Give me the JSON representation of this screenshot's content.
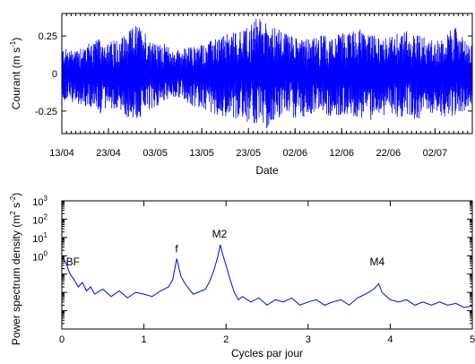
{
  "chart_data": [
    {
      "type": "line",
      "title": "",
      "xlabel": "Date",
      "ylabel": {
        "text": "Courant (m s",
        "exp": "-1",
        "close": ")"
      },
      "xlim": [
        "2011-04-13",
        "2011-07-10"
      ],
      "ylim": [
        -0.4,
        0.4
      ],
      "x_ticks": [
        "13/04",
        "23/04",
        "03/05",
        "13/05",
        "23/05",
        "02/06",
        "12/06",
        "22/06",
        "02/07"
      ],
      "x_tick_dates": [
        "2011-04-13",
        "2011-04-23",
        "2011-05-03",
        "2011-05-13",
        "2011-05-23",
        "2011-06-02",
        "2011-06-12",
        "2011-06-22",
        "2011-07-02"
      ],
      "y_ticks": [
        -0.25,
        0,
        0.25
      ],
      "y_tick_labels": [
        "-0.25",
        "0",
        "0.25"
      ],
      "series_color": "#0000ff",
      "series": [
        {
          "x": [
            "2011-04-13",
            "2011-04-15",
            "2011-04-17",
            "2011-04-19",
            "2011-04-21",
            "2011-04-23",
            "2011-04-25",
            "2011-04-27",
            "2011-04-29",
            "2011-05-01",
            "2011-05-03",
            "2011-05-05",
            "2011-05-07",
            "2011-05-09",
            "2011-05-11",
            "2011-05-13",
            "2011-05-15",
            "2011-05-17",
            "2011-05-19",
            "2011-05-21",
            "2011-05-23",
            "2011-05-25",
            "2011-05-27",
            "2011-05-29",
            "2011-05-31",
            "2011-06-02",
            "2011-06-04",
            "2011-06-06",
            "2011-06-08",
            "2011-06-10",
            "2011-06-12",
            "2011-06-14",
            "2011-06-16",
            "2011-06-18",
            "2011-06-20",
            "2011-06-22",
            "2011-06-24",
            "2011-06-26",
            "2011-06-28",
            "2011-06-30",
            "2011-07-02",
            "2011-07-04",
            "2011-07-06",
            "2011-07-08",
            "2011-07-10"
          ],
          "max": [
            0.17,
            0.16,
            0.19,
            0.21,
            0.23,
            0.2,
            0.25,
            0.27,
            0.33,
            0.28,
            0.19,
            0.2,
            0.15,
            0.17,
            0.18,
            0.2,
            0.22,
            0.25,
            0.27,
            0.29,
            0.32,
            0.38,
            0.34,
            0.3,
            0.28,
            0.27,
            0.25,
            0.24,
            0.26,
            0.25,
            0.27,
            0.28,
            0.3,
            0.26,
            0.25,
            0.24,
            0.27,
            0.29,
            0.28,
            0.24,
            0.22,
            0.23,
            0.33,
            0.24,
            0.18
          ],
          "min": [
            -0.18,
            -0.19,
            -0.21,
            -0.24,
            -0.27,
            -0.25,
            -0.23,
            -0.3,
            -0.31,
            -0.27,
            -0.24,
            -0.18,
            -0.16,
            -0.17,
            -0.22,
            -0.24,
            -0.26,
            -0.28,
            -0.29,
            -0.31,
            -0.33,
            -0.34,
            -0.37,
            -0.3,
            -0.28,
            -0.3,
            -0.29,
            -0.27,
            -0.26,
            -0.3,
            -0.27,
            -0.28,
            -0.3,
            -0.32,
            -0.29,
            -0.27,
            -0.3,
            -0.28,
            -0.31,
            -0.29,
            -0.25,
            -0.3,
            -0.28,
            -0.26,
            -0.2
          ]
        }
      ]
    },
    {
      "type": "line",
      "title": "",
      "xlabel": "Cycles par jour",
      "ylabel": {
        "text": "Power spectrum density (m",
        "exp1": "2",
        "mid": " s",
        "exp2": "-2",
        "close": ")"
      },
      "yscale": "log",
      "xlim": [
        0,
        5
      ],
      "ylim_exp": [
        -4,
        3
      ],
      "x_ticks": [
        0,
        1,
        2,
        3,
        4,
        5
      ],
      "x_tick_labels": [
        "0",
        "1",
        "2",
        "3",
        "4",
        "5"
      ],
      "y_tick_exps": [
        0,
        1,
        2,
        3
      ],
      "y_tick_base": "10",
      "series_color": "#0000ff",
      "series": [
        {
          "x": [
            0.0,
            0.05,
            0.1,
            0.15,
            0.2,
            0.25,
            0.3,
            0.35,
            0.4,
            0.5,
            0.6,
            0.7,
            0.8,
            0.9,
            1.0,
            1.1,
            1.2,
            1.3,
            1.35,
            1.4,
            1.45,
            1.5,
            1.55,
            1.6,
            1.7,
            1.75,
            1.8,
            1.85,
            1.9,
            1.93,
            1.96,
            2.0,
            2.05,
            2.1,
            2.15,
            2.2,
            2.3,
            2.4,
            2.5,
            2.6,
            2.7,
            2.8,
            2.9,
            3.0,
            3.1,
            3.2,
            3.3,
            3.4,
            3.5,
            3.6,
            3.7,
            3.8,
            3.86,
            3.9,
            4.0,
            4.1,
            4.2,
            4.3,
            4.4,
            4.5,
            4.6,
            4.7,
            4.8,
            4.9,
            5.0
          ],
          "y": [
            0.9,
            0.4,
            0.1,
            0.05,
            0.02,
            0.035,
            0.012,
            0.02,
            0.008,
            0.015,
            0.006,
            0.012,
            0.005,
            0.01,
            0.008,
            0.006,
            0.012,
            0.02,
            0.05,
            0.7,
            0.08,
            0.03,
            0.015,
            0.008,
            0.012,
            0.015,
            0.04,
            0.15,
            0.9,
            4.0,
            1.2,
            0.3,
            0.05,
            0.01,
            0.004,
            0.006,
            0.003,
            0.005,
            0.002,
            0.004,
            0.003,
            0.005,
            0.002,
            0.003,
            0.004,
            0.002,
            0.003,
            0.004,
            0.002,
            0.005,
            0.008,
            0.015,
            0.03,
            0.01,
            0.004,
            0.003,
            0.004,
            0.002,
            0.003,
            0.002,
            0.003,
            0.002,
            0.0025,
            0.0015,
            0.0018
          ]
        }
      ],
      "annotations": [
        {
          "text": "BF",
          "x": 0.05,
          "y": 0.3
        },
        {
          "text": "f",
          "x": 1.38,
          "y": 1.5
        },
        {
          "text": "M2",
          "x": 1.83,
          "y": 10
        },
        {
          "text": "M4",
          "x": 3.75,
          "y": 0.3
        }
      ]
    }
  ]
}
